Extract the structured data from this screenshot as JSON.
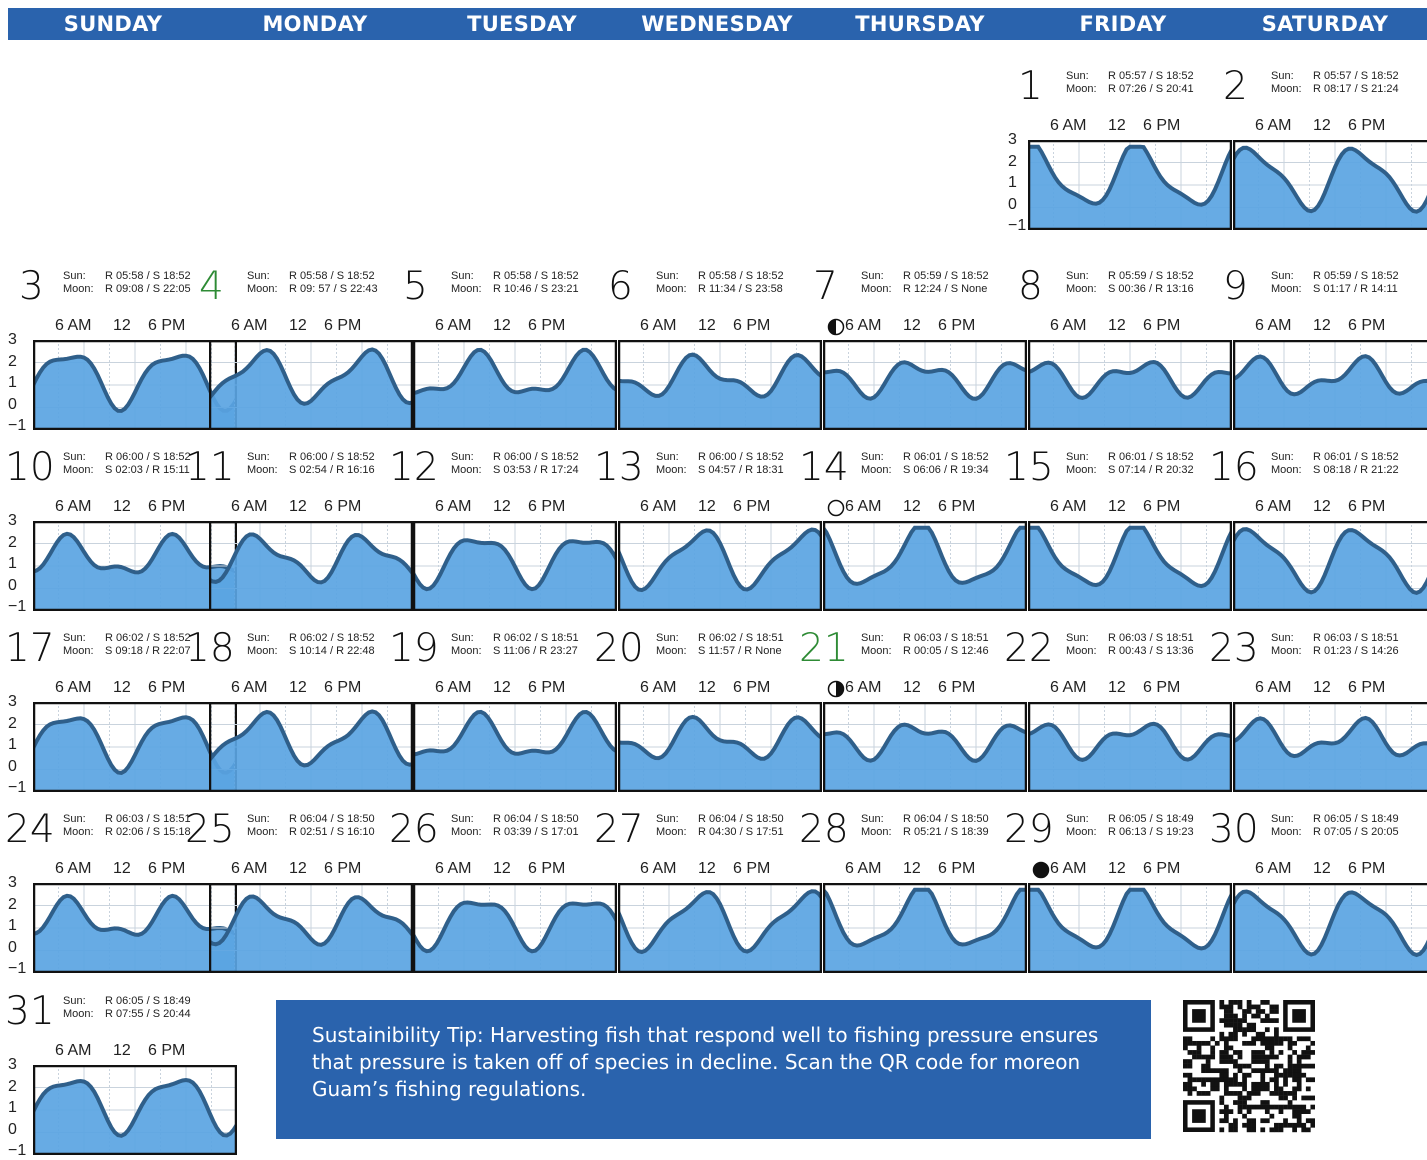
{
  "weekdays": [
    "SUNDAY",
    "MONDAY",
    "TUESDAY",
    "WEDNESDAY",
    "THURSDAY",
    "FRIDAY",
    "SATURDAY"
  ],
  "labels": {
    "sun": "Sun:",
    "moon": "Moon:"
  },
  "hour_labels": [
    "6 AM",
    "12",
    "6 PM"
  ],
  "axis_labels": [
    "3",
    "2",
    "1",
    "0",
    "−1"
  ],
  "tip": "Sustainibility Tip: Harvesting fish that respond well to fishing pressure ensures that pressure is taken off of species in decline. Scan the QR code for moreon Guam’s fishing regulations.",
  "colors": {
    "header": "#2a63ad",
    "water": "#5aa4e2",
    "tide_line": "#2f5f8a",
    "highlight": "#2e8b35"
  },
  "days": [
    {
      "day": "1",
      "sun": "R 05:57 / S 18:52",
      "moon": "R 07:26 / S 20:41"
    },
    {
      "day": "2",
      "sun": "R 05:57 / S 18:52",
      "moon": "R 08:17 / S 21:24"
    },
    {
      "day": "3",
      "sun": "R 05:58 / S 18:52",
      "moon": "R 09:08 / S 22:05"
    },
    {
      "day": "4",
      "sun": "R 05:58 / S 18:52",
      "moon": "R 09: 57 / S 22:43",
      "highlight": true
    },
    {
      "day": "5",
      "sun": "R 05:58 / S 18:52",
      "moon": "R 10:46 / S 23:21"
    },
    {
      "day": "6",
      "sun": "R 05:58 / S 18:52",
      "moon": "R 11:34 / S 23:58"
    },
    {
      "day": "7",
      "sun": "R 05:59 / S 18:52",
      "moon": "R 12:24 / S None",
      "phase": "first-quarter"
    },
    {
      "day": "8",
      "sun": "R 05:59 / S 18:52",
      "moon": "S 00:36 / R 13:16"
    },
    {
      "day": "9",
      "sun": "R 05:59 / S 18:52",
      "moon": "S 01:17 / R 14:11"
    },
    {
      "day": "10",
      "sun": "R 06:00 / S 18:52",
      "moon": "S 02:03 / R 15:11"
    },
    {
      "day": "11",
      "sun": "R 06:00 / S 18:52",
      "moon": "S 02:54 / R 16:16"
    },
    {
      "day": "12",
      "sun": "R 06:00 / S 18:52",
      "moon": "S 03:53 / R 17:24"
    },
    {
      "day": "13",
      "sun": "R 06:00 / S 18:52",
      "moon": "S 04:57 / R 18:31"
    },
    {
      "day": "14",
      "sun": "R 06:01 / S 18:52",
      "moon": "S 06:06 / R 19:34",
      "phase": "full"
    },
    {
      "day": "15",
      "sun": "R 06:01 / S 18:52",
      "moon": "S 07:14 / R 20:32"
    },
    {
      "day": "16",
      "sun": "R 06:01 / S 18:52",
      "moon": "S 08:18 / R 21:22"
    },
    {
      "day": "17",
      "sun": "R 06:02 / S 18:52",
      "moon": "S 09:18 / R 22:07"
    },
    {
      "day": "18",
      "sun": "R 06:02 / S 18:52",
      "moon": "S 10:14 / R 22:48"
    },
    {
      "day": "19",
      "sun": "R 06:02 / S 18:51",
      "moon": "S 11:06 / R 23:27"
    },
    {
      "day": "20",
      "sun": "R 06:02 / S 18:51",
      "moon": "S 11:57 / R None"
    },
    {
      "day": "21",
      "sun": "R 06:03 / S 18:51",
      "moon": "R 00:05 / S 12:46",
      "highlight": true,
      "phase": "last-quarter"
    },
    {
      "day": "22",
      "sun": "R 06:03 / S 18:51",
      "moon": "R 00:43 / S 13:36"
    },
    {
      "day": "23",
      "sun": "R 06:03 / S 18:51",
      "moon": "R 01:23 / S 14:26"
    },
    {
      "day": "24",
      "sun": "R 06:03 / S 18:51",
      "moon": "R 02:06 / S 15:18"
    },
    {
      "day": "25",
      "sun": "R 06:04 / S 18:50",
      "moon": "R 02:51 / S 16:10"
    },
    {
      "day": "26",
      "sun": "R 06:04 / S 18:50",
      "moon": "R 03:39 / S 17:01"
    },
    {
      "day": "27",
      "sun": "R 06:04 / S 18:50",
      "moon": "R 04:30 / S 17:51"
    },
    {
      "day": "28",
      "sun": "R 06:04 / S 18:50",
      "moon": "R 05:21 / S 18:39"
    },
    {
      "day": "29",
      "sun": "R 06:05 / S 18:49",
      "moon": "R 06:13 / S 19:23",
      "phase": "new"
    },
    {
      "day": "30",
      "sun": "R 06:05 / S 18:49",
      "moon": "R 07:05 / S 20:05"
    },
    {
      "day": "31",
      "sun": "R 06:05 / S 18:49",
      "moon": "R 07:55 / S 20:44"
    }
  ]
}
